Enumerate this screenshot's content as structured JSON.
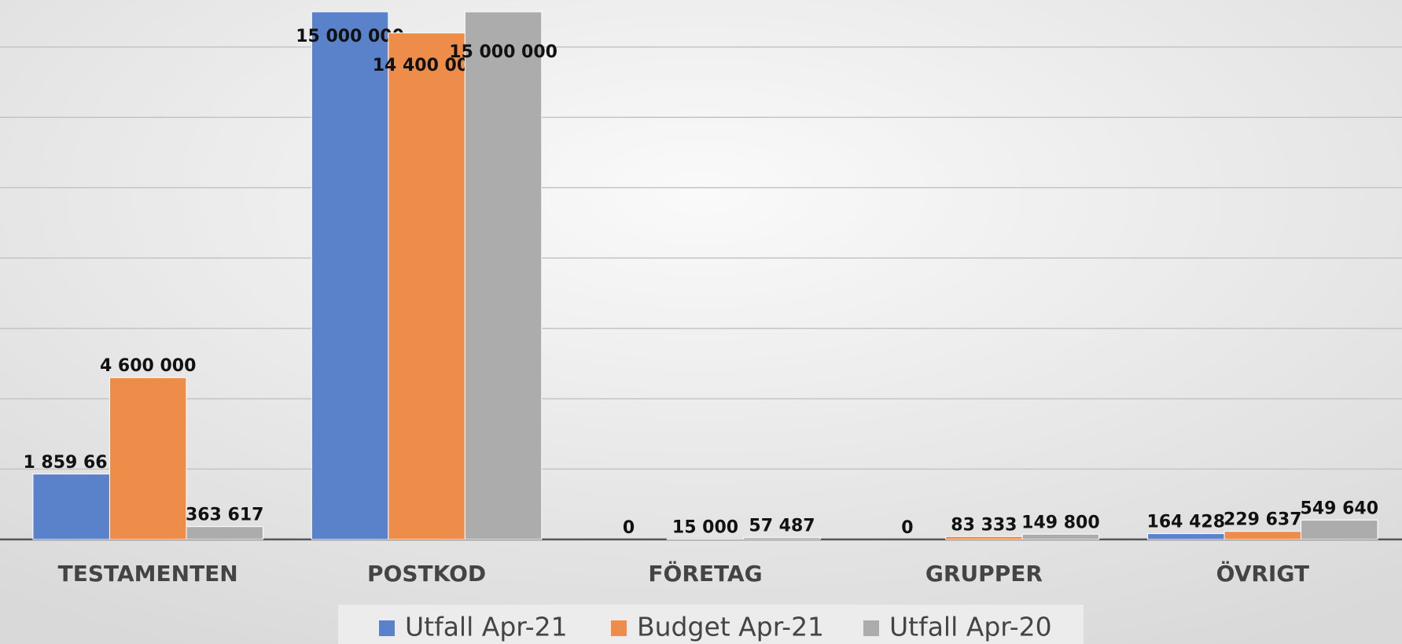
{
  "chart_data": {
    "type": "bar",
    "categories": [
      "TESTAMENTEN",
      "POSTKOD",
      "FÖRETAG",
      "GRUPPER",
      "ÖVRIGT"
    ],
    "series": [
      {
        "name": "Utfall Apr-21",
        "color": "#5a82cb",
        "values": [
          1859661,
          15000000,
          0,
          0,
          164428
        ],
        "value_labels": [
          "1 859 661",
          "15 000 000",
          "0",
          "0",
          "164 428"
        ]
      },
      {
        "name": "Budget Apr-21",
        "color": "#ee8c4a",
        "values": [
          4600000,
          14400000,
          15000,
          83333,
          229637
        ],
        "value_labels": [
          "4 600 000",
          "14 400 000",
          "15 000",
          "83 333",
          "229 637"
        ]
      },
      {
        "name": "Utfall Apr-20",
        "color": "#acacac",
        "values": [
          363617,
          15000000,
          57487,
          149800,
          549640
        ],
        "value_labels": [
          "363 617",
          "15 000 000",
          "57 487",
          "149 800",
          "549 640"
        ]
      }
    ],
    "ylim": [
      0,
      15000000
    ],
    "yticks": [
      0,
      2000000,
      4000000,
      6000000,
      8000000,
      10000000,
      12000000,
      14000000
    ],
    "grid": true,
    "legend": "bottom"
  }
}
